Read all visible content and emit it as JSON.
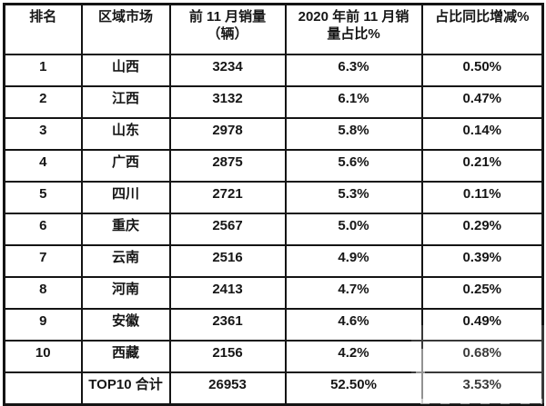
{
  "colors": {
    "background": "#ffffff",
    "border": "#141414",
    "text": "#161616",
    "watermark": "#ffffff"
  },
  "table": {
    "columns": [
      {
        "label": "排名"
      },
      {
        "label": "区域市场"
      },
      {
        "label": "前 11 月销量\n（辆）"
      },
      {
        "label": "2020 年前 11 月销\n量占比%"
      },
      {
        "label": "占比同比增减%"
      }
    ],
    "rows": [
      [
        "1",
        "山西",
        "3234",
        "6.3%",
        "0.50%"
      ],
      [
        "2",
        "江西",
        "3132",
        "6.1%",
        "0.47%"
      ],
      [
        "3",
        "山东",
        "2978",
        "5.8%",
        "0.14%"
      ],
      [
        "4",
        "广西",
        "2875",
        "5.6%",
        "0.21%"
      ],
      [
        "5",
        "四川",
        "2721",
        "5.3%",
        "0.11%"
      ],
      [
        "6",
        "重庆",
        "2567",
        "5.0%",
        "0.29%"
      ],
      [
        "7",
        "云南",
        "2516",
        "4.9%",
        "0.39%"
      ],
      [
        "8",
        "河南",
        "2413",
        "4.7%",
        "0.25%"
      ],
      [
        "9",
        "安徽",
        "2361",
        "4.6%",
        "0.49%"
      ],
      [
        "10",
        "西藏",
        "2156",
        "4.2%",
        "0.68%"
      ],
      [
        "",
        "TOP10 合计",
        "26953",
        "52.50%",
        "3.53%"
      ]
    ]
  },
  "chart_data": {
    "type": "table",
    "title": "",
    "columns": [
      "排名",
      "区域市场",
      "前11月销量（辆）",
      "2020年前11月销量占比%",
      "占比同比增减%"
    ],
    "rows": [
      [
        "1",
        "山西",
        3234,
        "6.3%",
        "0.50%"
      ],
      [
        "2",
        "江西",
        3132,
        "6.1%",
        "0.47%"
      ],
      [
        "3",
        "山东",
        2978,
        "5.8%",
        "0.14%"
      ],
      [
        "4",
        "广西",
        2875,
        "5.6%",
        "0.21%"
      ],
      [
        "5",
        "四川",
        2721,
        "5.3%",
        "0.11%"
      ],
      [
        "6",
        "重庆",
        2567,
        "5.0%",
        "0.29%"
      ],
      [
        "7",
        "云南",
        2516,
        "4.9%",
        "0.39%"
      ],
      [
        "8",
        "河南",
        2413,
        "4.7%",
        "0.25%"
      ],
      [
        "9",
        "安徽",
        2361,
        "4.6%",
        "0.49%"
      ],
      [
        "10",
        "西藏",
        2156,
        "4.2%",
        "0.68%"
      ],
      [
        "",
        "TOP10 合计",
        26953,
        "52.50%",
        "3.53%"
      ]
    ]
  }
}
